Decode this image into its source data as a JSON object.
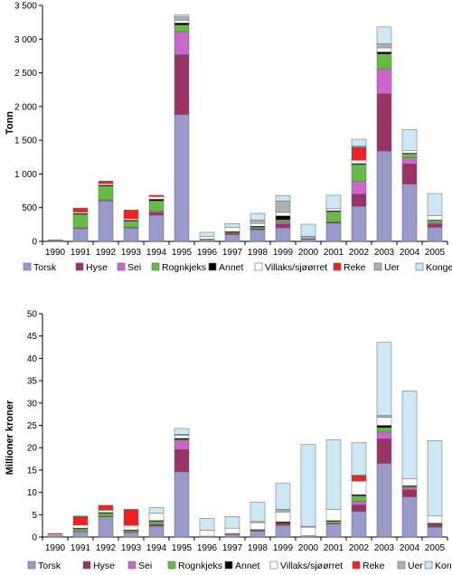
{
  "chart_data": [
    {
      "type": "bar",
      "stacked": true,
      "ylabel": "Tonn",
      "ylim": [
        0,
        3500
      ],
      "yticks": [
        "0",
        "500",
        "1 000",
        "1 500",
        "2 000",
        "2 500",
        "3 000",
        "3 500"
      ],
      "categories": [
        "1990",
        "1991",
        "1992",
        "1993",
        "1994",
        "1995",
        "1996",
        "1997",
        "1998",
        "1999",
        "2000",
        "2001",
        "2002",
        "2003",
        "2004",
        "2005"
      ],
      "legend_position": "bottom",
      "series": [
        {
          "name": "Torsk",
          "color": "#9999cc",
          "values": [
            10,
            190,
            600,
            200,
            390,
            1880,
            30,
            100,
            170,
            200,
            30,
            270,
            520,
            1340,
            850,
            210
          ]
        },
        {
          "name": "Hyse",
          "color": "#993366",
          "values": [
            0,
            10,
            10,
            10,
            40,
            890,
            0,
            20,
            20,
            60,
            0,
            20,
            180,
            850,
            300,
            50
          ]
        },
        {
          "name": "Sei",
          "color": "#cc66cc",
          "values": [
            0,
            0,
            10,
            0,
            20,
            340,
            0,
            0,
            0,
            30,
            0,
            0,
            190,
            370,
            90,
            20
          ]
        },
        {
          "name": "Rognkjeks",
          "color": "#66bb44",
          "values": [
            0,
            200,
            200,
            90,
            150,
            100,
            0,
            10,
            20,
            30,
            10,
            150,
            250,
            220,
            60,
            30
          ]
        },
        {
          "name": "Annet",
          "color": "#000000",
          "values": [
            5,
            15,
            15,
            15,
            25,
            30,
            5,
            15,
            15,
            60,
            5,
            15,
            15,
            30,
            10,
            10
          ]
        },
        {
          "name": "Villaks/sjøørret",
          "color": "#ffffff",
          "values": [
            10,
            20,
            20,
            20,
            40,
            40,
            40,
            60,
            40,
            50,
            20,
            30,
            50,
            60,
            40,
            60
          ]
        },
        {
          "name": "Reke",
          "color": "#ee2222",
          "values": [
            0,
            60,
            40,
            130,
            20,
            0,
            0,
            0,
            0,
            0,
            0,
            0,
            190,
            0,
            0,
            0
          ]
        },
        {
          "name": "Uer",
          "color": "#b0b0b0",
          "values": [
            0,
            0,
            0,
            0,
            0,
            50,
            0,
            0,
            50,
            170,
            10,
            0,
            20,
            60,
            0,
            0
          ]
        },
        {
          "name": "Kongekrabbe",
          "color": "#cce8f4",
          "values": [
            0,
            0,
            0,
            0,
            0,
            30,
            60,
            60,
            100,
            80,
            180,
            200,
            100,
            250,
            310,
            330
          ]
        }
      ]
    },
    {
      "type": "bar",
      "stacked": true,
      "ylabel": "Millioner kroner",
      "ylim": [
        0,
        50
      ],
      "yticks": [
        "0",
        "5",
        "10",
        "15",
        "20",
        "25",
        "30",
        "35",
        "40",
        "45",
        "50"
      ],
      "categories": [
        "1990",
        "1991",
        "1992",
        "1993",
        "1994",
        "1995",
        "1996",
        "1997",
        "1998",
        "1999",
        "2000",
        "2001",
        "2002",
        "2003",
        "2004",
        "2005"
      ],
      "legend_position": "bottom",
      "series": [
        {
          "name": "Torsk",
          "color": "#9999cc",
          "values": [
            0.3,
            1.2,
            4.5,
            1.0,
            2.4,
            14.6,
            0.2,
            0.6,
            1.3,
            2.6,
            0.3,
            2.9,
            5.7,
            16.5,
            9.0,
            2.2
          ]
        },
        {
          "name": "Hyse",
          "color": "#993366",
          "values": [
            0,
            0.1,
            0.1,
            0.1,
            0.4,
            5.0,
            0,
            0.1,
            0.2,
            0.3,
            0,
            0.2,
            1.5,
            5.5,
            1.6,
            0.5
          ]
        },
        {
          "name": "Sei",
          "color": "#cc66cc",
          "values": [
            0,
            0,
            0.1,
            0,
            0.1,
            1.9,
            0,
            0,
            0,
            0.1,
            0,
            0,
            0.8,
            1.5,
            0.4,
            0.1
          ]
        },
        {
          "name": "Rognkjeks",
          "color": "#66bb44",
          "values": [
            0,
            0.5,
            0.6,
            0.3,
            0.6,
            0.3,
            0,
            0,
            0.1,
            0.1,
            0,
            0.4,
            1.2,
            1.0,
            0.3,
            0.1
          ]
        },
        {
          "name": "Annet",
          "color": "#000000",
          "values": [
            0,
            0.2,
            0.2,
            0.2,
            0.2,
            0.3,
            0,
            0.1,
            0.1,
            0.3,
            0,
            0.2,
            0.3,
            0.5,
            0.2,
            0.2
          ]
        },
        {
          "name": "Villaks/sjøørret",
          "color": "#ffffff",
          "values": [
            0.3,
            0.7,
            0.5,
            1.0,
            1.6,
            0.7,
            1.3,
            1.2,
            1.5,
            2.2,
            1.9,
            2.5,
            3.0,
            1.8,
            1.5,
            1.6
          ]
        },
        {
          "name": "Reke",
          "color": "#ee2222",
          "values": [
            0.2,
            2.0,
            1.1,
            3.6,
            0,
            0,
            0,
            0,
            0,
            0,
            0,
            0,
            1.2,
            0,
            0,
            0
          ]
        },
        {
          "name": "Uer",
          "color": "#b0b0b0",
          "values": [
            0,
            0,
            0,
            0,
            0,
            0.2,
            0,
            0,
            0.3,
            0.6,
            0.2,
            0,
            0.2,
            0.4,
            0,
            0
          ]
        },
        {
          "name": "Kongekrabbe",
          "color": "#cce8f4",
          "values": [
            0,
            0,
            0,
            0,
            1.3,
            1.3,
            2.7,
            2.6,
            4.3,
            5.8,
            18.3,
            15.6,
            7.2,
            16.4,
            19.7,
            16.9
          ]
        }
      ]
    }
  ]
}
